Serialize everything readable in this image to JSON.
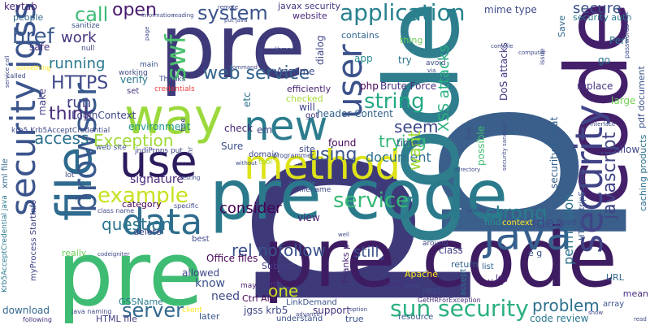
{
  "words": [
    {
      "text": "p",
      "color": "#3e3a7a"
    },
    {
      "text": "p",
      "color": "#3a5f8a"
    },
    {
      "text": "code",
      "color": "#2e7e8e"
    },
    {
      "text": "pre",
      "color": "#3e3a7a"
    },
    {
      "text": "pre",
      "color": "#3fbc73"
    },
    {
      "text": "code",
      "color": "#44206b"
    },
    {
      "text": "pre code",
      "color": "#2a7a8c"
    },
    {
      "text": "pre code",
      "color": "#3e1c62"
    },
    {
      "text": "way",
      "color": "#9bd93c"
    },
    {
      "text": "use",
      "color": "#2c1c5e"
    },
    {
      "text": "file",
      "color": "#2e6b8e"
    },
    {
      "text": "browser",
      "color": "#38598c"
    },
    {
      "text": "security jgss",
      "color": "#3a548c"
    },
    {
      "text": "method",
      "color": "#dde318"
    },
    {
      "text": "new",
      "color": "#2c7d8e"
    },
    {
      "text": "data",
      "color": "#2f6d8e"
    },
    {
      "text": "java",
      "color": "#355f8d"
    },
    {
      "text": "security",
      "color": "#414487"
    },
    {
      "text": "user",
      "color": "#3b528b"
    },
    {
      "text": "swf",
      "color": "#4ac16d"
    },
    {
      "text": "sun security",
      "color": "#2ab07f"
    },
    {
      "text": "application",
      "color": "#26828e"
    },
    {
      "text": "web service",
      "color": "#33638d"
    },
    {
      "text": "system",
      "color": "#3a538b"
    },
    {
      "text": "javascript",
      "color": "#414487"
    },
    {
      "text": "string",
      "color": "#22a884"
    },
    {
      "text": "example",
      "color": "#c8e020"
    },
    {
      "text": "service",
      "color": "#38b977"
    },
    {
      "text": "server",
      "color": "#31688e"
    },
    {
      "text": "rel nofollow",
      "color": "#3b528b"
    },
    {
      "text": "problem",
      "color": "#2d708e"
    },
    {
      "text": "strong",
      "color": "#287d8e"
    },
    {
      "text": "using",
      "color": "#3a548c"
    },
    {
      "text": "seem",
      "color": "#3e4989"
    },
    {
      "text": "trying",
      "color": "#35b779"
    },
    {
      "text": "access",
      "color": "#2c728e"
    },
    {
      "text": "Exception",
      "color": "#9fda3a"
    },
    {
      "text": "think",
      "color": "#472d7b"
    },
    {
      "text": "question",
      "color": "#2b758e"
    },
    {
      "text": "href",
      "color": "#38588c"
    },
    {
      "text": "call",
      "color": "#3cbb75"
    },
    {
      "text": "open",
      "color": "#481a6c"
    },
    {
      "text": "HTTPS",
      "color": "#3f4889"
    },
    {
      "text": "work",
      "color": "#46337f"
    },
    {
      "text": "running",
      "color": "#2a788e"
    },
    {
      "text": "run",
      "color": "#424186"
    },
    {
      "text": "document",
      "color": "#2d708e"
    },
    {
      "text": "want",
      "color": "#a2da37"
    },
    {
      "text": "secure",
      "color": "#3b528b"
    },
    {
      "text": "consider",
      "color": "#440154"
    },
    {
      "text": "still",
      "color": "#3b528b"
    },
    {
      "text": "one",
      "color": "#cae11f"
    },
    {
      "text": "idea",
      "color": "#3e4a89"
    },
    {
      "text": "permission",
      "color": "#2c718e"
    },
    {
      "text": "security auth",
      "color": "#2a788e"
    },
    {
      "text": "Perl",
      "color": "#2c728e"
    },
    {
      "text": "replace",
      "color": "#46327e"
    },
    {
      "text": "go",
      "color": "#2b748e"
    },
    {
      "text": "large",
      "color": "#75d054"
    },
    {
      "text": "allow",
      "color": "#3f4788"
    },
    {
      "text": "XSS attacks",
      "color": "#29af7f"
    },
    {
      "text": "mime type",
      "color": "#3e4c8a"
    },
    {
      "text": "header Content",
      "color": "#33638d"
    },
    {
      "text": "Brute Force",
      "color": "#46307e"
    },
    {
      "text": "security threat",
      "color": "#34608d"
    },
    {
      "text": "signature",
      "color": "#482878"
    },
    {
      "text": "environment",
      "color": "#1f9a8a"
    },
    {
      "text": "LoginContext",
      "color": "#3f4788"
    },
    {
      "text": "verify",
      "color": "#29798e"
    },
    {
      "text": "keytab",
      "color": "#482475"
    },
    {
      "text": "people",
      "color": "#31678e"
    },
    {
      "text": "Assume",
      "color": "#3e4a89"
    },
    {
      "text": "dialog",
      "color": "#404688"
    },
    {
      "text": "website",
      "color": "#482576"
    },
    {
      "text": "javax security",
      "color": "#453882"
    },
    {
      "text": "app",
      "color": "#23898e"
    },
    {
      "text": "try",
      "color": "#2c728e"
    },
    {
      "text": "thing",
      "color": "#6ccd5a"
    },
    {
      "text": "DoS attacks",
      "color": "#443a83"
    },
    {
      "text": "contains",
      "color": "#32658e"
    },
    {
      "text": "Save",
      "color": "#31688e"
    },
    {
      "text": "php",
      "color": "#440154"
    },
    {
      "text": "possible",
      "color": "#40bd72"
    },
    {
      "text": "Office files",
      "color": "#450457"
    },
    {
      "text": "Thanks p",
      "color": "#482878"
    },
    {
      "text": "rest",
      "color": "#3e4989"
    },
    {
      "text": "class",
      "color": "#424086"
    },
    {
      "text": "return",
      "color": "#34608d"
    },
    {
      "text": "e g",
      "color": "#3b528b"
    },
    {
      "text": "know",
      "color": "#3b528b"
    },
    {
      "text": "need",
      "color": "#3e4989"
    },
    {
      "text": "support",
      "color": "#46337f"
    },
    {
      "text": "jgss krb5",
      "color": "#3f4788"
    },
    {
      "text": "code review",
      "color": "#2a788e"
    },
    {
      "text": "download",
      "color": "#31688e"
    },
    {
      "text": "later",
      "color": "#3a548c"
    },
    {
      "text": "Ctrl Alt",
      "color": "#440154"
    },
    {
      "text": "delete",
      "color": "#404588"
    },
    {
      "text": "view",
      "color": "#481f70"
    },
    {
      "text": "really",
      "color": "#6ece58"
    },
    {
      "text": "find",
      "color": "#1f958b"
    },
    {
      "text": "load",
      "color": "#3e4a89"
    },
    {
      "text": "check",
      "color": "#482677"
    },
    {
      "text": "em",
      "color": "#414487"
    },
    {
      "text": "Sure",
      "color": "#3b528b"
    },
    {
      "text": "found",
      "color": "#440154"
    },
    {
      "text": "time",
      "color": "#3b528b"
    },
    {
      "text": "site",
      "color": "#3e4989"
    },
    {
      "text": "make",
      "color": "#433e85"
    },
    {
      "text": "safe",
      "color": "#46327e"
    },
    {
      "text": "sanitize",
      "color": "#3b528b"
    },
    {
      "text": "null",
      "color": "#414487"
    },
    {
      "text": "category",
      "color": "#440154"
    },
    {
      "text": "stream",
      "color": "#472c7a"
    },
    {
      "text": "around",
      "color": "#3e4989"
    },
    {
      "text": "Apache",
      "color": "#fde725"
    },
    {
      "text": "GSSName",
      "color": "#2a788e"
    },
    {
      "text": "HTML file",
      "color": "#424086"
    },
    {
      "text": "allowed",
      "color": "#3f4788"
    },
    {
      "text": "may",
      "color": "#481b6d"
    },
    {
      "text": "true",
      "color": "#3b528b"
    },
    {
      "text": "list",
      "color": "#33638d"
    },
    {
      "text": "accept",
      "color": "#2c728e"
    },
    {
      "text": "URL",
      "color": "#31688e"
    },
    {
      "text": "mean",
      "color": "#472f7d"
    },
    {
      "text": "array",
      "color": "#3b528b"
    },
    {
      "text": "log",
      "color": "#482374"
    },
    {
      "text": "rather",
      "color": "#481668"
    },
    {
      "text": "resource",
      "color": "#38588c"
    },
    {
      "text": "understand",
      "color": "#3b528b"
    },
    {
      "text": "mind",
      "color": "#3e4989"
    },
    {
      "text": "name",
      "color": "#46337f"
    },
    {
      "text": "following",
      "color": "#472d7b"
    },
    {
      "text": "client",
      "color": "#fde725"
    },
    {
      "text": "etc",
      "color": "#2c728e"
    },
    {
      "text": "will",
      "color": "#404688"
    },
    {
      "text": "got",
      "color": "#46327e"
    },
    {
      "text": "checked",
      "color": "#a5db36"
    },
    {
      "text": "efficiently",
      "color": "#482173"
    },
    {
      "text": "set",
      "color": "#46337f"
    },
    {
      "text": "domain",
      "color": "#3f4788"
    },
    {
      "text": "fine",
      "color": "#3e4989"
    },
    {
      "text": "best",
      "color": "#3e4989"
    },
    {
      "text": "Subject",
      "color": "#433e85"
    },
    {
      "text": "LinkDemand",
      "color": "#3b528b"
    },
    {
      "text": "GetHRForException",
      "color": "#472f7d"
    },
    {
      "text": "HTML StripScripts",
      "color": "#3a548c"
    },
    {
      "text": "caching products",
      "color": "#2c728e"
    },
    {
      "text": "pdf document",
      "color": "#3b528b"
    },
    {
      "text": "myProcess StartInfo",
      "color": "#414487"
    },
    {
      "text": "Krb5AcceptCredential java",
      "color": "#2a788e"
    },
    {
      "text": "krb5 Krb5AcceptCredential",
      "color": "#3e4989"
    },
    {
      "text": "xml file",
      "color": "#31688e"
    },
    {
      "text": "jndiProps put",
      "color": "#414487"
    },
    {
      "text": "web site",
      "color": "#3b528b"
    },
    {
      "text": "called",
      "color": "#3e4989"
    },
    {
      "text": "something",
      "color": "#fde725"
    },
    {
      "text": "main",
      "color": "#3b528b"
    },
    {
      "text": "working",
      "color": "#3e4989"
    },
    {
      "text": "Thanks",
      "color": "#3e4989"
    },
    {
      "text": "credentials",
      "color": "#ee3a3a"
    },
    {
      "text": "filename",
      "color": "#3e4989"
    },
    {
      "text": "variable",
      "color": "#2c728e"
    },
    {
      "text": "tool",
      "color": "#a5db36"
    },
    {
      "text": "programmer",
      "color": "#3e4989"
    },
    {
      "text": "hr",
      "color": "#3e4989"
    },
    {
      "text": "lot",
      "color": "#3e4989"
    },
    {
      "text": "expect",
      "color": "#3e4989"
    },
    {
      "text": "class name",
      "color": "#3e4989"
    },
    {
      "text": "java naming",
      "color": "#3e4989"
    },
    {
      "text": "codeigniter",
      "color": "#3e4989"
    },
    {
      "text": "specific",
      "color": "#3e4989"
    },
    {
      "text": "testing",
      "color": "#3e4989"
    },
    {
      "text": "without",
      "color": "#3e4989"
    },
    {
      "text": "advance",
      "color": "#3e4989"
    },
    {
      "text": "option",
      "color": "#3e4989"
    },
    {
      "text": "well",
      "color": "#3e4989"
    },
    {
      "text": "context",
      "color": "#fde725"
    },
    {
      "text": "protect",
      "color": "#3e4989"
    },
    {
      "text": "show",
      "color": "#3e4989"
    },
    {
      "text": "read",
      "color": "#3e4989"
    },
    {
      "text": "interface",
      "color": "#3e4989"
    },
    {
      "text": "computer",
      "color": "#3e4989"
    },
    {
      "text": "issue",
      "color": "#3e4989"
    },
    {
      "text": "passwords",
      "color": "#3e4989"
    },
    {
      "text": "sort",
      "color": "#3e4989"
    },
    {
      "text": "compile",
      "color": "#3e4989"
    },
    {
      "text": "via",
      "color": "#3e4989"
    },
    {
      "text": "avoid",
      "color": "#3e4989"
    },
    {
      "text": "link",
      "color": "#3e4989"
    },
    {
      "text": "security sandbox",
      "color": "#3e4989"
    },
    {
      "text": "directory",
      "color": "#3e4989"
    },
    {
      "text": "remote",
      "color": "#3e4989"
    },
    {
      "text": "reading",
      "color": "#3e4989"
    },
    {
      "text": "information",
      "color": "#3e4989"
    },
    {
      "text": "put java",
      "color": "#3e4989"
    },
    {
      "text": "page",
      "color": "#3e4989"
    },
    {
      "text": "library",
      "color": "#3e4989"
    },
    {
      "text": "result",
      "color": "#3e4989"
    },
    {
      "text": "command",
      "color": "#3e4989"
    },
    {
      "text": "service call",
      "color": "#3e4989"
    }
  ]
}
